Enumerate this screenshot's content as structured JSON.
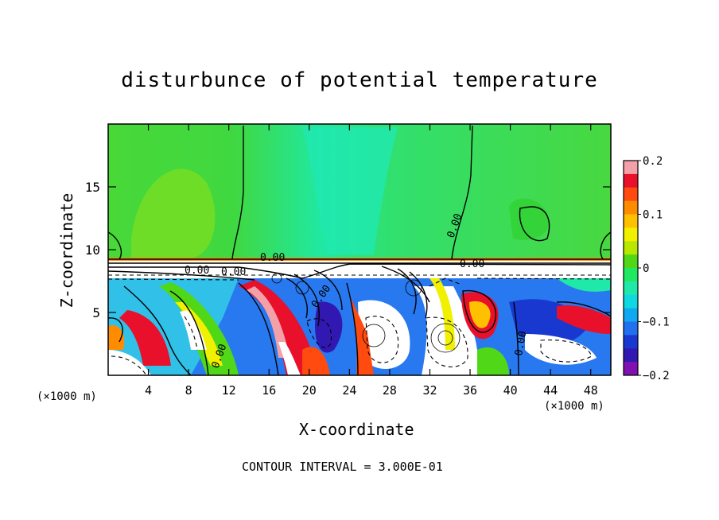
{
  "chart_data": {
    "type": "heatmap",
    "title": "disturbunce of potential temperature",
    "xlabel": "X-coordinate",
    "ylabel": "Z-coordinate",
    "x_unit_label": "(×1000 m)",
    "x_unit_label_right": "(×1000 m)",
    "xlim": [
      0,
      50
    ],
    "ylim": [
      0,
      20
    ],
    "x_ticks": [
      4,
      8,
      12,
      16,
      20,
      24,
      28,
      32,
      36,
      40,
      44,
      48
    ],
    "y_ticks": [
      5,
      10,
      15
    ],
    "colorbar": {
      "range": [
        -0.2,
        0.2
      ],
      "labels": [
        "0.2",
        "0.1",
        "0",
        "−0.1",
        "−0.2"
      ],
      "label_values": [
        0.2,
        0.1,
        0,
        -0.1,
        -0.2
      ],
      "colors": [
        "#f4a0a8",
        "#e8102a",
        "#ff4a10",
        "#ff8c00",
        "#ffc000",
        "#f0f000",
        "#b8e800",
        "#50d818",
        "#20e860",
        "#20e8a8",
        "#10d8e0",
        "#10a8f0",
        "#2070f0",
        "#1838d0",
        "#3018b0",
        "#8010b0"
      ]
    },
    "contour_labels": [
      "0.00",
      "0.00",
      "0.00",
      "0.00",
      "0.00",
      "0.00",
      "0.00",
      "0.00"
    ],
    "footnote": "CONTOUR INTERVAL = 3.000E-01"
  }
}
